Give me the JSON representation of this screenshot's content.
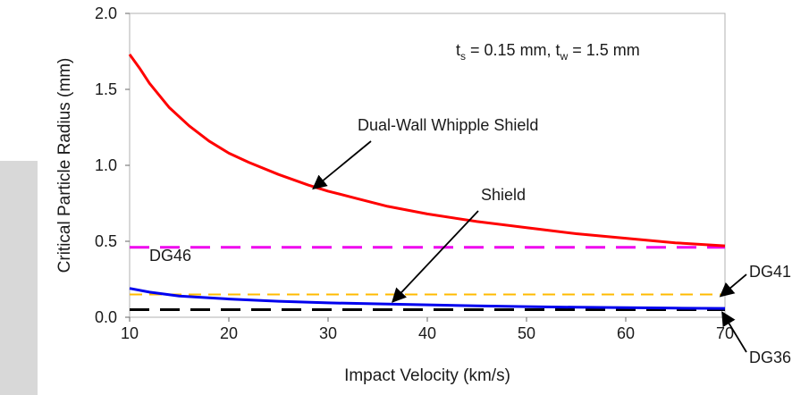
{
  "chart_data": {
    "type": "line",
    "title": "",
    "xlabel": "Impact Velocity (km/s)",
    "ylabel": "Critical Particle Radius (mm)",
    "xlim": [
      10,
      70
    ],
    "ylim": [
      0.0,
      2.0
    ],
    "x_ticks": [
      "10",
      "20",
      "30",
      "40",
      "50",
      "60",
      "70"
    ],
    "y_ticks": [
      "0.0",
      "0.5",
      "1.0",
      "1.5",
      "2.0"
    ],
    "params_text": {
      "prefix": "t",
      "sub1": "s",
      "mid": " = 0.15 mm, t",
      "sub2": "w",
      "suffix": " = 1.5 mm"
    },
    "series": [
      {
        "name": "Dual-Wall Whipple Shield",
        "color": "#ff0000",
        "style": "solid",
        "x": [
          10,
          11,
          12,
          14,
          16,
          18,
          20,
          22,
          25,
          28,
          30,
          33,
          36,
          40,
          45,
          50,
          55,
          60,
          65,
          70
        ],
        "y": [
          1.73,
          1.64,
          1.54,
          1.38,
          1.26,
          1.16,
          1.08,
          1.02,
          0.94,
          0.87,
          0.83,
          0.78,
          0.73,
          0.68,
          0.63,
          0.59,
          0.55,
          0.52,
          0.49,
          0.47
        ]
      },
      {
        "name": "Shield",
        "color": "#0000ee",
        "style": "solid",
        "x": [
          10,
          12,
          15,
          20,
          25,
          30,
          35,
          40,
          45,
          50,
          55,
          60,
          65,
          70
        ],
        "y": [
          0.19,
          0.165,
          0.14,
          0.12,
          0.105,
          0.095,
          0.088,
          0.082,
          0.075,
          0.07,
          0.066,
          0.063,
          0.06,
          0.058
        ]
      }
    ],
    "reference_lines": [
      {
        "name": "DG46",
        "y": 0.46,
        "color": "#ee00ee",
        "style": "dashed"
      },
      {
        "name": "DG41",
        "y": 0.15,
        "color": "#ffbb00",
        "style": "dashed"
      },
      {
        "name": "DG36",
        "y": 0.05,
        "color": "#000000",
        "style": "dashed"
      }
    ],
    "annotations": [
      {
        "text": "Dual-Wall Whipple Shield",
        "arrow_to": [
          28.5,
          0.87
        ]
      },
      {
        "text": "Shield",
        "arrow_to": [
          36.5,
          0.09
        ]
      },
      {
        "text": "DG46"
      },
      {
        "text": "DG41",
        "arrow_to": [
          70,
          0.15
        ]
      },
      {
        "text": "DG36",
        "arrow_to": [
          70,
          0.05
        ]
      }
    ],
    "grid": false,
    "legend": "none"
  }
}
